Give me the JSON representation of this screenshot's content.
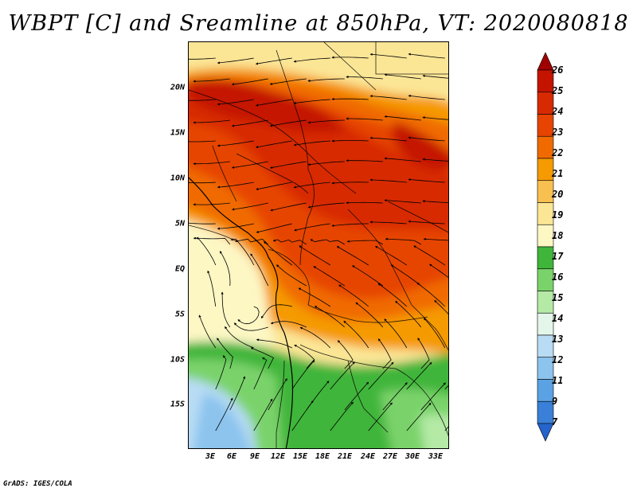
{
  "title": "WBPT [C] and Sreamline at 850hPa, VT: 2020080818",
  "credit": "GrADS: IGES/COLA",
  "map": {
    "lat_labels": [
      "20N",
      "15N",
      "10N",
      "5N",
      "EQ",
      "5S",
      "10S",
      "15S"
    ],
    "lon_labels": [
      "3E",
      "6E",
      "9E",
      "12E",
      "15E",
      "18E",
      "21E",
      "24E",
      "27E",
      "30E",
      "33E"
    ]
  },
  "colorbar": {
    "levels": [
      "26",
      "25",
      "24",
      "23",
      "22",
      "21",
      "20",
      "19",
      "18",
      "17",
      "16",
      "15",
      "14",
      "13",
      "12",
      "11",
      "9",
      "7"
    ],
    "colors": [
      "#a00000",
      "#c41400",
      "#d82a00",
      "#e64400",
      "#f06a00",
      "#f59a00",
      "#f8c050",
      "#fbe696",
      "#fdf7c4",
      "#3fb53a",
      "#7ad36a",
      "#b4eaa6",
      "#e4f6ea",
      "#b8dcf4",
      "#8cc4ee",
      "#5aa2e4",
      "#3a80d8",
      "#2464cc"
    ]
  }
}
